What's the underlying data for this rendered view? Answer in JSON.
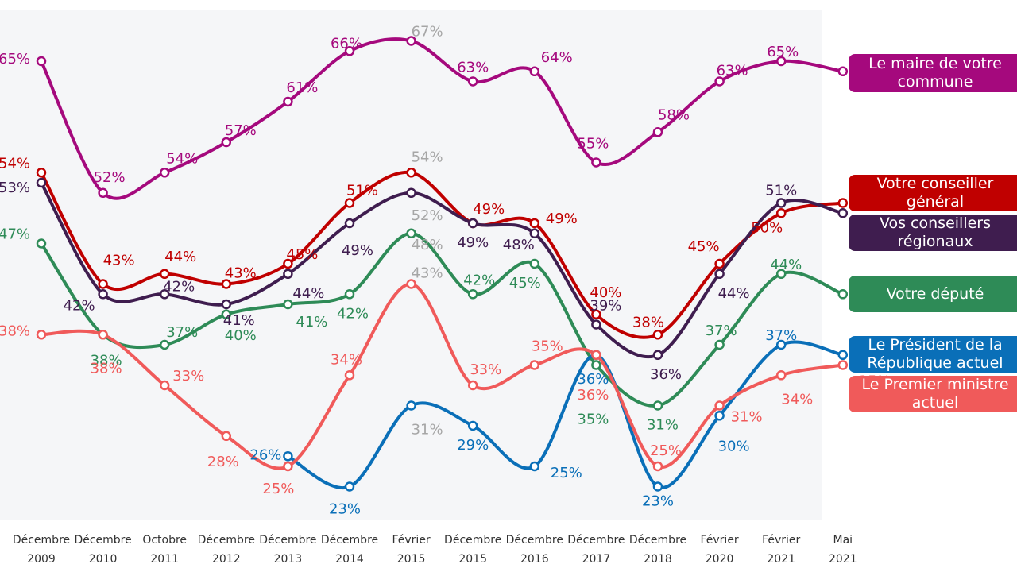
{
  "chart_data": {
    "type": "line",
    "categories": [
      "Décembre 2009",
      "Décembre 2010",
      "Octobre 2011",
      "Décembre 2012",
      "Décembre 2013",
      "Décembre 2014",
      "Février 2015",
      "Décembre 2015",
      "Décembre 2016",
      "Décembre 2017",
      "Décembre 2018",
      "Février 2020",
      "Février 2021",
      "Mai 2021"
    ],
    "category_lines": [
      [
        "Décembre",
        "2009"
      ],
      [
        "Décembre",
        "2010"
      ],
      [
        "Octobre",
        "2011"
      ],
      [
        "Décembre",
        "2012"
      ],
      [
        "Décembre",
        "2013"
      ],
      [
        "Décembre",
        "2014"
      ],
      [
        "Février",
        "2015"
      ],
      [
        "Décembre",
        "2015"
      ],
      [
        "Décembre",
        "2016"
      ],
      [
        "Décembre",
        "2017"
      ],
      [
        "Décembre",
        "2018"
      ],
      [
        "Février",
        "2020"
      ],
      [
        "Février",
        "2021"
      ],
      [
        "Mai",
        "2021"
      ]
    ],
    "ylim": [
      15,
      75
    ],
    "grid": false,
    "legend_placement": "right",
    "series": [
      {
        "name": "Le maire de votre commune",
        "color": "#a5097d",
        "values": [
          65,
          52,
          54,
          57,
          61,
          66,
          67,
          63,
          64,
          55,
          58,
          63,
          65,
          64
        ],
        "labels": [
          "65%",
          "52%",
          "54%",
          "57%",
          "61%",
          "66%",
          "67%",
          "63%",
          "64%",
          "55%",
          "58%",
          "63%",
          "65%",
          "64%"
        ],
        "label_colors": [
          "#a5097d",
          "#a5097d",
          "#a5097d",
          "#a5097d",
          "#a5097d",
          "#a5097d",
          "#a6a6a6",
          "#a5097d",
          "#a5097d",
          "#a5097d",
          "#a5097d",
          "#a5097d",
          "#a5097d",
          "#a5097d"
        ]
      },
      {
        "name": "Votre conseiller général",
        "color": "#c00000",
        "values": [
          54,
          43,
          44,
          43,
          45,
          51,
          54,
          49,
          49,
          40,
          38,
          45,
          50,
          51
        ],
        "labels": [
          "54%",
          "43%",
          "44%",
          "43%",
          "45%",
          "51%",
          "54%",
          "49%",
          "49%",
          "40%",
          "38%",
          "45%",
          "50%",
          "51%"
        ],
        "label_colors": [
          "#c00000",
          "#c00000",
          "#c00000",
          "#c00000",
          "#c00000",
          "#c00000",
          "#a6a6a6",
          "#c00000",
          "#c00000",
          "#c00000",
          "#c00000",
          "#c00000",
          "#c00000",
          "#c00000"
        ]
      },
      {
        "name": "Vos conseillers régionaux",
        "color": "#3f1d4f",
        "values": [
          53,
          42,
          42,
          41,
          44,
          49,
          52,
          49,
          48,
          39,
          36,
          44,
          51,
          50
        ],
        "labels": [
          "53%",
          "42%",
          "42%",
          "41%",
          "44%",
          "49%",
          "52%",
          "49%",
          "48%",
          "39%",
          "36%",
          "44%",
          "51%",
          "50%"
        ],
        "label_colors": [
          "#3f1d4f",
          "#3f1d4f",
          "#3f1d4f",
          "#3f1d4f",
          "#3f1d4f",
          "#3f1d4f",
          "#a6a6a6",
          "#3f1d4f",
          "#3f1d4f",
          "#3f1d4f",
          "#3f1d4f",
          "#3f1d4f",
          "#3f1d4f",
          "#3f1d4f"
        ]
      },
      {
        "name": "Votre député",
        "color": "#2e8b57",
        "values": [
          47,
          38,
          37,
          40,
          41,
          42,
          48,
          42,
          45,
          35,
          31,
          37,
          44,
          42
        ],
        "labels": [
          "47%",
          "38%",
          "37%",
          "40%",
          "41%",
          "42%",
          "48%",
          "42%",
          "45%",
          "35%",
          "31%",
          "37%",
          "44%",
          "42%"
        ],
        "label_colors": [
          "#2e8b57",
          "#2e8b57",
          "#2e8b57",
          "#2e8b57",
          "#2e8b57",
          "#2e8b57",
          "#a6a6a6",
          "#2e8b57",
          "#2e8b57",
          "#2e8b57",
          "#2e8b57",
          "#2e8b57",
          "#2e8b57",
          "#2e8b57"
        ]
      },
      {
        "name": "Le Président de la République actuel",
        "color": "#0a6fb8",
        "values": [
          null,
          null,
          null,
          null,
          26,
          23,
          31,
          29,
          25,
          36,
          23,
          30,
          37,
          36
        ],
        "labels": [
          "",
          "",
          "",
          "",
          "26%",
          "23%",
          "31%",
          "29%",
          "25%",
          "36%",
          "23%",
          "30%",
          "37%",
          "36%"
        ],
        "label_colors": [
          "#0a6fb8",
          "#0a6fb8",
          "#0a6fb8",
          "#0a6fb8",
          "#0a6fb8",
          "#0a6fb8",
          "#a6a6a6",
          "#0a6fb8",
          "#0a6fb8",
          "#0a6fb8",
          "#0a6fb8",
          "#0a6fb8",
          "#0a6fb8",
          "#0a6fb8"
        ]
      },
      {
        "name": "Le Premier ministre actuel",
        "color": "#f05a5a",
        "values": [
          38,
          38,
          33,
          28,
          25,
          34,
          43,
          33,
          35,
          36,
          25,
          31,
          34,
          35
        ],
        "labels": [
          "38%",
          "38%",
          "33%",
          "28%",
          "25%",
          "34%",
          "43%",
          "33%",
          "35%",
          "36%",
          "25%",
          "31%",
          "34%",
          "35%"
        ],
        "label_colors": [
          "#f05a5a",
          "#f05a5a",
          "#f05a5a",
          "#f05a5a",
          "#f05a5a",
          "#f05a5a",
          "#a6a6a6",
          "#f05a5a",
          "#f05a5a",
          "#f05a5a",
          "#f05a5a",
          "#f05a5a",
          "#f05a5a",
          "#f05a5a"
        ]
      }
    ]
  },
  "legend": [
    {
      "text": "Le maire de votre\ncommune",
      "color": "#a5097d"
    },
    {
      "text": "Votre conseiller général",
      "color": "#c00000"
    },
    {
      "text": "Vos conseillers régionaux",
      "color": "#3f1d4f"
    },
    {
      "text": "Votre député",
      "color": "#2e8b57"
    },
    {
      "text": "Le Président de la\nRépublique actuel",
      "color": "#0a6fb8"
    },
    {
      "text": "Le Premier ministre\nactuel",
      "color": "#f05a5a"
    }
  ]
}
